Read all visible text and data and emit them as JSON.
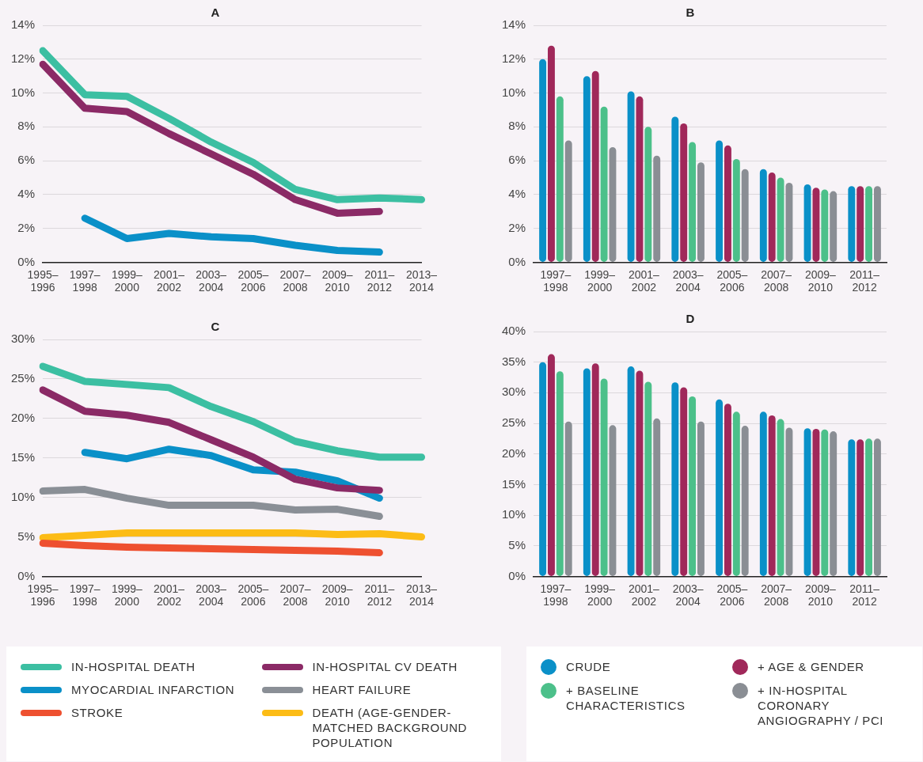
{
  "chart_data": [
    {
      "type": "line",
      "title": "A",
      "categories": [
        "1995–1996",
        "1997–1998",
        "1999–2000",
        "2001–2002",
        "2003–2004",
        "2005–2006",
        "2007–2008",
        "2009–2010",
        "2011–2012",
        "2013–2014"
      ],
      "series": [
        {
          "color": "#3cbfa2",
          "values": [
            12.5,
            9.9,
            9.8,
            8.5,
            7.1,
            5.9,
            4.3,
            3.7,
            3.8,
            3.7
          ]
        },
        {
          "color": "#8b2a66",
          "values": [
            11.7,
            9.1,
            8.9,
            7.6,
            6.4,
            5.2,
            3.7,
            2.9,
            3.0,
            null
          ]
        },
        {
          "color": "#0a90c8",
          "values": [
            null,
            2.6,
            1.4,
            1.7,
            1.5,
            1.4,
            1.0,
            0.7,
            0.6,
            null
          ]
        }
      ],
      "ylim": [
        0,
        14
      ],
      "yticks": [
        {
          "value": 0,
          "label": "0%"
        },
        {
          "value": 2,
          "label": "2%"
        },
        {
          "value": 4,
          "label": "4%"
        },
        {
          "value": 6,
          "label": "6%"
        },
        {
          "value": 8,
          "label": "8%"
        },
        {
          "value": 10,
          "label": "10%"
        },
        {
          "value": 12,
          "label": "12%"
        },
        {
          "value": 14,
          "label": "14%"
        }
      ],
      "grid": "y",
      "line_style": "solid",
      "marker": "none"
    },
    {
      "type": "bar",
      "title": "B",
      "categories": [
        "1997–1998",
        "1999–2000",
        "2001–2002",
        "2003–2004",
        "2005–2006",
        "2007–2008",
        "2009–2010",
        "2011–2012"
      ],
      "series": [
        {
          "color": "#0a90c8",
          "values": [
            12.0,
            11.0,
            10.1,
            8.6,
            7.2,
            5.5,
            4.6,
            4.5
          ]
        },
        {
          "color": "#a0285a",
          "values": [
            12.8,
            11.3,
            9.8,
            8.2,
            6.9,
            5.3,
            4.4,
            4.5
          ]
        },
        {
          "color": "#4cc08a",
          "values": [
            9.8,
            9.2,
            8.0,
            7.1,
            6.1,
            5.0,
            4.3,
            4.5
          ]
        },
        {
          "color": "#8a8e94",
          "values": [
            7.2,
            6.8,
            6.3,
            5.9,
            5.5,
            4.7,
            4.2,
            4.5
          ]
        }
      ],
      "ylim": [
        0,
        14
      ],
      "yticks": [
        {
          "value": 0,
          "label": "0%"
        },
        {
          "value": 2,
          "label": "2%"
        },
        {
          "value": 4,
          "label": "4%"
        },
        {
          "value": 6,
          "label": "6%"
        },
        {
          "value": 8,
          "label": "8%"
        },
        {
          "value": 10,
          "label": "10%"
        },
        {
          "value": 12,
          "label": "12%"
        },
        {
          "value": 14,
          "label": "14%"
        }
      ],
      "grid": "y"
    },
    {
      "type": "line",
      "title": "C",
      "categories": [
        "1995–1996",
        "1997–1998",
        "1999–2000",
        "2001–2002",
        "2003–2004",
        "2005–2006",
        "2007–2008",
        "2009–2010",
        "2011–2012",
        "2013–2014"
      ],
      "series": [
        {
          "name": "IN-HOSPITAL DEATH",
          "color": "#3cbfa2",
          "values": [
            26.6,
            24.7,
            24.3,
            23.9,
            21.5,
            19.6,
            17.1,
            15.9,
            15.1,
            15.1
          ]
        },
        {
          "name": "IN-HOSPITAL CV DEATH",
          "color": "#8b2a66",
          "values": [
            23.6,
            20.9,
            20.4,
            19.5,
            17.3,
            15.1,
            12.3,
            11.2,
            10.9,
            null
          ]
        },
        {
          "name": "MYOCARDIAL INFARCTION",
          "color": "#0a90c8",
          "values": [
            null,
            15.7,
            14.9,
            16.1,
            15.3,
            13.5,
            13.2,
            12.1,
            9.9,
            null
          ]
        },
        {
          "name": "HEART FAILURE",
          "color": "#8a8f96",
          "values": [
            10.8,
            11.0,
            9.9,
            9.0,
            9.0,
            9.0,
            8.4,
            8.5,
            7.6,
            null
          ]
        },
        {
          "name": "STROKE",
          "color": "#ee5030",
          "values": [
            4.2,
            3.9,
            3.7,
            3.6,
            3.5,
            3.4,
            3.3,
            3.2,
            3.0,
            null
          ]
        },
        {
          "name": "DEATH (AGE-GENDER-MATCHED BACKGROUND POPULATION",
          "color": "#fcbc16",
          "values": [
            4.9,
            5.2,
            5.5,
            5.5,
            5.5,
            5.5,
            5.5,
            5.3,
            5.4,
            5.0
          ]
        }
      ],
      "ylim": [
        0,
        30
      ],
      "yticks": [
        {
          "value": 0,
          "label": "0%"
        },
        {
          "value": 5,
          "label": "5%"
        },
        {
          "value": 10,
          "label": "10%"
        },
        {
          "value": 15,
          "label": "15%"
        },
        {
          "value": 20,
          "label": "20%"
        },
        {
          "value": 25,
          "label": "25%"
        },
        {
          "value": 30,
          "label": "30%"
        }
      ],
      "grid": "y",
      "legend": "bottom",
      "line_style": "solid",
      "marker": "none"
    },
    {
      "type": "bar",
      "title": "D",
      "categories": [
        "1997–1998",
        "1999–2000",
        "2001–2002",
        "2003–2004",
        "2005–2006",
        "2007–2008",
        "2009–2010",
        "2011–2012"
      ],
      "series": [
        {
          "name": "CRUDE",
          "color": "#0a90c8",
          "values": [
            35.0,
            34.0,
            34.3,
            31.7,
            28.9,
            26.9,
            24.2,
            22.4
          ]
        },
        {
          "name": "+ AGE & GENDER",
          "color": "#a0285a",
          "values": [
            36.3,
            34.8,
            33.6,
            30.9,
            28.2,
            26.3,
            24.1,
            22.4
          ]
        },
        {
          "name": "+ BASELINE CHARACTERISTICS",
          "color": "#4cc08a",
          "values": [
            33.5,
            32.3,
            31.8,
            29.4,
            26.9,
            25.7,
            24.0,
            22.5
          ]
        },
        {
          "name": "+ IN-HOSPITAL CORONARY ANGIOGRAPHY / PCI",
          "color": "#8a8e94",
          "values": [
            25.3,
            24.7,
            25.8,
            25.3,
            24.6,
            24.3,
            23.7,
            22.5
          ]
        }
      ],
      "ylim": [
        0,
        40
      ],
      "yticks": [
        {
          "value": 0,
          "label": "0%"
        },
        {
          "value": 5,
          "label": "5%"
        },
        {
          "value": 10,
          "label": "10%"
        },
        {
          "value": 15,
          "label": "15%"
        },
        {
          "value": 20,
          "label": "20%"
        },
        {
          "value": 25,
          "label": "25%"
        },
        {
          "value": 30,
          "label": "30%"
        },
        {
          "value": 35,
          "label": "35%"
        },
        {
          "value": 40,
          "label": "40%"
        }
      ],
      "grid": "y",
      "legend": "bottom"
    }
  ]
}
